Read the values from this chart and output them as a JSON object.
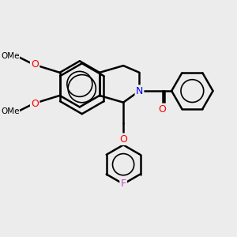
{
  "bg_color": "#ececec",
  "bond_color": "#000000",
  "bond_width": 1.8,
  "atom_colors": {
    "O": "#ff0000",
    "N": "#0000ff",
    "F": "#cc44cc",
    "C": "#000000"
  },
  "font_size_atom": 9,
  "font_size_methyl": 8
}
